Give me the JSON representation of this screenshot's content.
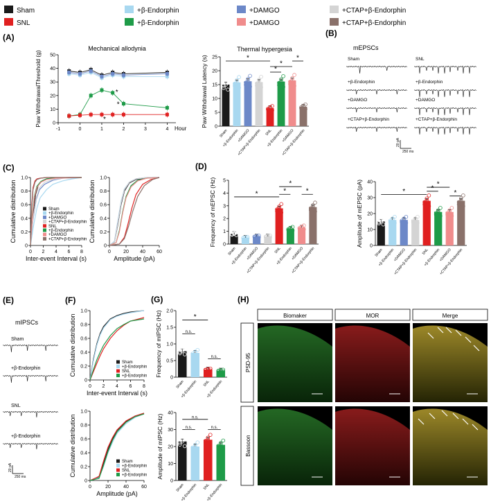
{
  "legend": {
    "items": [
      {
        "label": "Sham",
        "color": "#1a1a1a"
      },
      {
        "label": "SNL",
        "color": "#e02020"
      },
      {
        "label": "+β-Endorphin",
        "color": "#a8d8f0"
      },
      {
        "label": "+β-Endorphin",
        "color": "#1e9b48"
      },
      {
        "label": "+DAMGO",
        "color": "#6c88c8"
      },
      {
        "label": "+DAMGO",
        "color": "#f08c8c"
      },
      {
        "label": "+CTAP+β-Endorphin",
        "color": "#d4d4d4"
      },
      {
        "label": "+CTAP+β-Endorphin",
        "color": "#8a716a"
      }
    ]
  },
  "panels": {
    "A": "(A)",
    "B": "(B)",
    "C": "(C)",
    "D": "(D)",
    "E": "(E)",
    "F": "(F)",
    "G": "(G)",
    "H": "(H)"
  },
  "colors": {
    "sham": "#1a1a1a",
    "lightblue": "#a8d8f0",
    "blue": "#6c88c8",
    "lightgray": "#d4d4d4",
    "red": "#e02020",
    "green": "#1e9b48",
    "pink": "#f08c8c",
    "brown": "#8a716a"
  },
  "text": {
    "mech_title": "Mechanical allodynia",
    "mech_ylabel": "Paw WithdrawalThreshold (g)",
    "mech_xunit": "Hour",
    "thermal_title": "Thermal hypergesia",
    "thermal_ylabel": "Paw Withdrawal Latency (s)",
    "mepscs_title": "mEPSCs",
    "mipscs_title": "mIPSCs",
    "cum_ylabel": "Cumulative distribution",
    "iei_xlabel": "Inter-event Interval (s)",
    "amp_xlabel": "Amplitude (pA)",
    "freq_mepsc_ylabel": "Frequency of mEPSC (Hz)",
    "amp_mepsc_ylabel": "Amplitude of mEPSC (pA)",
    "freq_mipsc_ylabel": "Frequency of mIPSC (Hz)",
    "amp_mipsc_ylabel": "Amplitude of mIPSC (Hz)",
    "scalebar_y": "20 pA",
    "scalebar_x": "250 ms",
    "star": "*",
    "ns": "n.s."
  },
  "traces_B": {
    "left": [
      "Sham",
      "+β-Endorphin",
      "+DAMGO",
      "+CTAP+β-Endorphin"
    ],
    "right": [
      "SNL",
      "+β-Endorphin",
      "+DAMGO",
      "+CTAP+β-Endorphin"
    ]
  },
  "traces_E": [
    "Sham",
    "+β-Endorphin",
    "SNL",
    "+β-Endorphin"
  ],
  "histology": {
    "columns": [
      "Biomaker",
      "MOR",
      "Merge"
    ],
    "rows": [
      "PSD-95",
      "Bassoon"
    ]
  },
  "chart_data": [
    {
      "id": "A-mechanical",
      "type": "line",
      "title": "Mechanical allodynia",
      "xlabel": "Hour",
      "ylabel": "Paw WithdrawalThreshold (g)",
      "xlim": [
        -1,
        4.4
      ],
      "ylim": [
        0,
        50
      ],
      "xticks": [
        -1,
        0,
        1,
        2,
        3,
        4
      ],
      "yticks": [
        0,
        10,
        20,
        30,
        40,
        50
      ],
      "x": [
        -0.5,
        0,
        0.5,
        1,
        1.5,
        2,
        4
      ],
      "series": [
        {
          "color": "#1a1a1a",
          "values": [
            38,
            37,
            39,
            35,
            37,
            36,
            37
          ]
        },
        {
          "color": "#a8d8f0",
          "values": [
            36,
            35,
            37,
            33,
            35,
            34,
            34
          ]
        },
        {
          "color": "#6c88c8",
          "values": [
            37,
            36,
            38,
            34,
            36,
            35,
            36
          ]
        },
        {
          "color": "#1e9b48",
          "values": [
            5,
            6,
            20,
            24,
            22,
            14,
            11
          ]
        },
        {
          "color": "#e02020",
          "values": [
            5,
            5.5,
            6,
            6,
            6,
            6,
            6
          ]
        }
      ]
    },
    {
      "id": "A-thermal",
      "type": "bar",
      "title": "Thermal hypergesia",
      "ylabel": "Paw Withdrawal Latency (s)",
      "ylim": [
        0,
        25
      ],
      "yticks": [
        0,
        5,
        10,
        15,
        20,
        25
      ],
      "categories": [
        "Sham",
        "+β-Endorphin",
        "+DAMGO",
        "+CTAP+β-Endorphin",
        "SNL",
        "+β-Endorphin",
        "+DAMGO",
        "+CTAP+β-Endorphin"
      ],
      "values": [
        15,
        15.8,
        16.2,
        15.9,
        6.5,
        16.1,
        16.5,
        7.0
      ],
      "colors": [
        "#1a1a1a",
        "#a8d8f0",
        "#6c88c8",
        "#d4d4d4",
        "#e02020",
        "#1e9b48",
        "#f08c8c",
        "#8a716a"
      ]
    },
    {
      "id": "C-iei",
      "type": "line",
      "xlabel": "Inter-event Interval (s)",
      "ylabel": "Cumulative distribution",
      "xlim": [
        0,
        8
      ],
      "ylim": [
        0,
        1.0
      ],
      "xticks": [
        0,
        2,
        4,
        6,
        8
      ],
      "yticks": [
        0,
        0.2,
        0.4,
        0.6,
        0.8,
        1.0
      ],
      "series": [
        {
          "name": "Sham",
          "color": "#1a1a1a",
          "x": [
            0,
            0.4,
            0.8,
            1.2,
            1.8,
            2.5,
            4,
            6,
            8
          ],
          "y": [
            0,
            0.45,
            0.75,
            0.88,
            0.95,
            0.98,
            0.995,
            1,
            1
          ]
        },
        {
          "name": "+β-Endorphin",
          "color": "#a8d8f0",
          "x": [
            0,
            0.5,
            1,
            1.5,
            2.5,
            3.5,
            5,
            6.5,
            8
          ],
          "y": [
            0,
            0.3,
            0.55,
            0.7,
            0.82,
            0.9,
            0.95,
            0.98,
            1
          ]
        },
        {
          "name": "+DAMGO",
          "color": "#6c88c8",
          "x": [
            0,
            0.4,
            0.9,
            1.4,
            2.2,
            3.5,
            5,
            8
          ],
          "y": [
            0,
            0.38,
            0.68,
            0.82,
            0.9,
            0.96,
            0.99,
            1
          ]
        },
        {
          "name": "+CTAP+β-Endorphin",
          "color": "#d4d4d4",
          "x": [
            0,
            0.4,
            0.9,
            1.4,
            2.2,
            3.5,
            5,
            8
          ],
          "y": [
            0,
            0.4,
            0.7,
            0.85,
            0.93,
            0.97,
            0.99,
            1
          ]
        },
        {
          "name": "SNL",
          "color": "#e02020",
          "x": [
            0,
            0.2,
            0.4,
            0.7,
            1,
            1.5,
            2.5,
            4,
            8
          ],
          "y": [
            0,
            0.6,
            0.85,
            0.95,
            0.98,
            0.99,
            1,
            1,
            1
          ]
        },
        {
          "name": "+β-Endorphin",
          "color": "#1e9b48",
          "x": [
            0,
            0.3,
            0.6,
            1,
            1.6,
            2.5,
            4,
            8
          ],
          "y": [
            0,
            0.45,
            0.72,
            0.87,
            0.94,
            0.98,
            0.995,
            1
          ]
        },
        {
          "name": "+DAMGO",
          "color": "#f08c8c",
          "x": [
            0,
            0.3,
            0.6,
            1,
            1.6,
            2.5,
            4,
            8
          ],
          "y": [
            0,
            0.42,
            0.7,
            0.85,
            0.93,
            0.97,
            0.99,
            1
          ]
        },
        {
          "name": "+CTAP+β-Endorphin",
          "color": "#8a716a",
          "x": [
            0,
            0.2,
            0.4,
            0.7,
            1,
            1.6,
            2.5,
            8
          ],
          "y": [
            0,
            0.55,
            0.82,
            0.93,
            0.97,
            0.99,
            1,
            1
          ]
        }
      ]
    },
    {
      "id": "C-amp",
      "type": "line",
      "xlabel": "Amplitude (pA)",
      "ylabel": "Cumulative distribution",
      "xlim": [
        0,
        60
      ],
      "ylim": [
        0,
        1.0
      ],
      "xticks": [
        0,
        20,
        40,
        60
      ],
      "yticks": [
        0,
        0.2,
        0.4,
        0.6,
        0.8,
        1.0
      ],
      "series": [
        {
          "name": "Sham",
          "color": "#1a1a1a",
          "x": [
            0,
            6,
            10,
            14,
            18,
            24,
            32,
            45,
            60
          ],
          "y": [
            0,
            0.05,
            0.3,
            0.6,
            0.8,
            0.92,
            0.97,
            0.995,
            1
          ]
        },
        {
          "name": "+β-Endorphin",
          "color": "#a8d8f0",
          "x": [
            0,
            6,
            10,
            14,
            18,
            24,
            32,
            45,
            60
          ],
          "y": [
            0,
            0.06,
            0.35,
            0.65,
            0.83,
            0.93,
            0.98,
            1,
            1
          ]
        },
        {
          "name": "+DAMGO",
          "color": "#6c88c8",
          "x": [
            0,
            6,
            10,
            14,
            18,
            24,
            32,
            45,
            60
          ],
          "y": [
            0,
            0.05,
            0.33,
            0.62,
            0.82,
            0.93,
            0.98,
            1,
            1
          ]
        },
        {
          "name": "+CTAP+β-Endorphin",
          "color": "#d4d4d4",
          "x": [
            0,
            6,
            10,
            14,
            18,
            24,
            32,
            45,
            60
          ],
          "y": [
            0,
            0.05,
            0.32,
            0.63,
            0.82,
            0.93,
            0.98,
            1,
            1
          ]
        },
        {
          "name": "SNL",
          "color": "#e02020",
          "x": [
            0,
            12,
            18,
            22,
            27,
            32,
            40,
            50,
            60
          ],
          "y": [
            0,
            0.02,
            0.12,
            0.3,
            0.55,
            0.75,
            0.9,
            0.97,
            1
          ]
        },
        {
          "name": "+β-Endorphin",
          "color": "#1e9b48",
          "x": [
            0,
            8,
            12,
            16,
            20,
            26,
            34,
            45,
            60
          ],
          "y": [
            0,
            0.04,
            0.22,
            0.5,
            0.72,
            0.88,
            0.96,
            0.99,
            1
          ]
        },
        {
          "name": "+DAMGO",
          "color": "#f08c8c",
          "x": [
            0,
            8,
            12,
            16,
            20,
            26,
            34,
            45,
            60
          ],
          "y": [
            0,
            0.04,
            0.2,
            0.48,
            0.7,
            0.86,
            0.95,
            0.99,
            1
          ]
        },
        {
          "name": "+CTAP+β-Endorphin",
          "color": "#8a716a",
          "x": [
            0,
            12,
            18,
            23,
            28,
            34,
            42,
            52,
            60
          ],
          "y": [
            0,
            0.02,
            0.1,
            0.28,
            0.5,
            0.72,
            0.88,
            0.97,
            1
          ]
        }
      ]
    },
    {
      "id": "D-freq",
      "type": "bar",
      "ylabel": "Frequency of mEPSC (Hz)",
      "ylim": [
        0,
        5
      ],
      "yticks": [
        0,
        1,
        2,
        3,
        4,
        5
      ],
      "categories": [
        "Sham",
        "+β-Endorphin",
        "+DAMGO",
        "+CTAP+β-Endorphin",
        "SNL",
        "+β-Endorphin",
        "+DAMGO",
        "+CTAP+β-Endorphin"
      ],
      "values": [
        0.8,
        0.5,
        0.6,
        0.6,
        2.8,
        1.2,
        1.3,
        2.9
      ],
      "colors": [
        "#1a1a1a",
        "#a8d8f0",
        "#6c88c8",
        "#d4d4d4",
        "#e02020",
        "#1e9b48",
        "#f08c8c",
        "#8a716a"
      ]
    },
    {
      "id": "D-amp",
      "type": "bar",
      "ylabel": "Amplitude of mEPSC (pA)",
      "ylim": [
        0,
        40
      ],
      "yticks": [
        0,
        10,
        20,
        30,
        40
      ],
      "categories": [
        "Sham",
        "+β-Endorphin",
        "+DAMGO",
        "+CTAP+β-Endorphin",
        "SNL",
        "+β-Endorphin",
        "+DAMGO",
        "+CTAP+β-Endorphin"
      ],
      "values": [
        15,
        16,
        16,
        16,
        28,
        21,
        21,
        28
      ],
      "colors": [
        "#1a1a1a",
        "#a8d8f0",
        "#6c88c8",
        "#d4d4d4",
        "#e02020",
        "#1e9b48",
        "#f08c8c",
        "#8a716a"
      ]
    },
    {
      "id": "F-iei",
      "type": "line",
      "xlabel": "Inter-event Interval (s)",
      "ylabel": "Cumulative distribution",
      "xlim": [
        0,
        8
      ],
      "ylim": [
        0,
        1.0
      ],
      "xticks": [
        0,
        2,
        4,
        6,
        8
      ],
      "yticks": [
        0,
        0.2,
        0.4,
        0.6,
        0.8,
        1.0
      ],
      "series": [
        {
          "name": "Sham",
          "color": "#1a1a1a",
          "x": [
            0,
            0.5,
            1,
            1.5,
            2,
            3,
            4,
            5,
            6,
            8
          ],
          "y": [
            0,
            0.3,
            0.52,
            0.67,
            0.77,
            0.88,
            0.93,
            0.96,
            0.98,
            1
          ]
        },
        {
          "name": "+β-Endorphin",
          "color": "#a8d8f0",
          "x": [
            0,
            0.5,
            1,
            1.5,
            2,
            3,
            4,
            5,
            6,
            8
          ],
          "y": [
            0,
            0.28,
            0.5,
            0.65,
            0.75,
            0.87,
            0.92,
            0.95,
            0.97,
            1
          ]
        },
        {
          "name": "SNL",
          "color": "#e02020",
          "x": [
            0,
            0.5,
            1,
            1.5,
            2,
            3,
            4,
            5,
            6,
            8
          ],
          "y": [
            0,
            0.12,
            0.24,
            0.35,
            0.45,
            0.6,
            0.71,
            0.79,
            0.85,
            0.9
          ]
        },
        {
          "name": "+β-Endorphin",
          "color": "#1e9b48",
          "x": [
            0,
            0.5,
            1,
            1.5,
            2,
            3,
            4,
            5,
            6,
            8
          ],
          "y": [
            0,
            0.15,
            0.29,
            0.4,
            0.5,
            0.64,
            0.74,
            0.8,
            0.85,
            0.88
          ]
        }
      ]
    },
    {
      "id": "F-amp",
      "type": "line",
      "xlabel": "Amplitude (pA)",
      "ylabel": "Cumulative distribution",
      "xlim": [
        0,
        60
      ],
      "ylim": [
        0,
        1.0
      ],
      "xticks": [
        0,
        20,
        40,
        60
      ],
      "yticks": [
        0,
        0.2,
        0.4,
        0.6,
        0.8,
        1.0
      ],
      "series": [
        {
          "name": "Sham",
          "color": "#1a1a1a",
          "x": [
            0,
            10,
            15,
            20,
            25,
            30,
            40,
            50,
            60
          ],
          "y": [
            0,
            0.05,
            0.25,
            0.45,
            0.6,
            0.72,
            0.85,
            0.93,
            0.97
          ]
        },
        {
          "name": "+β-Endorphin",
          "color": "#a8d8f0",
          "x": [
            0,
            10,
            15,
            20,
            25,
            30,
            40,
            50,
            60
          ],
          "y": [
            0,
            0.04,
            0.2,
            0.4,
            0.55,
            0.68,
            0.82,
            0.91,
            0.96
          ]
        },
        {
          "name": "SNL",
          "color": "#e02020",
          "x": [
            0,
            10,
            15,
            20,
            25,
            30,
            40,
            50,
            60
          ],
          "y": [
            0,
            0.06,
            0.28,
            0.48,
            0.62,
            0.73,
            0.86,
            0.93,
            0.97
          ]
        },
        {
          "name": "+β-Endorphin",
          "color": "#1e9b48",
          "x": [
            0,
            10,
            15,
            20,
            25,
            30,
            40,
            50,
            60
          ],
          "y": [
            0,
            0.03,
            0.22,
            0.42,
            0.58,
            0.7,
            0.84,
            0.92,
            0.96
          ]
        }
      ]
    },
    {
      "id": "G-freq",
      "type": "bar",
      "ylabel": "Frequency of mIPSC (Hz)",
      "ylim": [
        0,
        2.0
      ],
      "yticks": [
        0,
        0.5,
        1.0,
        1.5,
        2.0
      ],
      "categories": [
        "Sham",
        "+β-Endorphin",
        "SNL",
        "+β-Endorphin"
      ],
      "values": [
        0.78,
        0.73,
        0.23,
        0.2
      ],
      "colors": [
        "#1a1a1a",
        "#a8d8f0",
        "#e02020",
        "#1e9b48"
      ]
    },
    {
      "id": "G-amp",
      "type": "bar",
      "ylabel": "Amplitude of mIPSC (Hz)",
      "ylim": [
        0,
        40
      ],
      "yticks": [
        0,
        10,
        20,
        30,
        40
      ],
      "categories": [
        "Sham",
        "+β-Endorphin",
        "SNL",
        "+β-Endorphin"
      ],
      "values": [
        23,
        20,
        24,
        21
      ],
      "colors": [
        "#1a1a1a",
        "#a8d8f0",
        "#e02020",
        "#1e9b48"
      ]
    }
  ]
}
